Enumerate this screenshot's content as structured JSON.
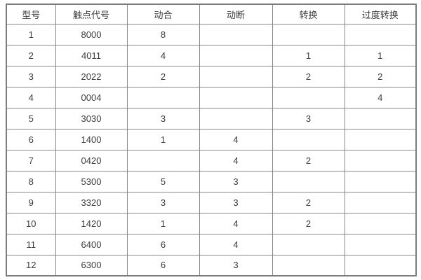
{
  "table": {
    "columns": [
      "型号",
      "触点代号",
      "动合",
      "动断",
      "转换",
      "过度转换"
    ],
    "rows": [
      [
        "1",
        "8000",
        "8",
        "",
        "",
        ""
      ],
      [
        "2",
        "4011",
        "4",
        "",
        "1",
        "1"
      ],
      [
        "3",
        "2022",
        "2",
        "",
        "2",
        "2"
      ],
      [
        "4",
        "0004",
        "",
        "",
        "",
        "4"
      ],
      [
        "5",
        "3030",
        "3",
        "",
        "3",
        ""
      ],
      [
        "6",
        "1400",
        "1",
        "4",
        "",
        ""
      ],
      [
        "7",
        "0420",
        "",
        "4",
        "2",
        ""
      ],
      [
        "8",
        "5300",
        "5",
        "3",
        "",
        ""
      ],
      [
        "9",
        "3320",
        "3",
        "3",
        "2",
        ""
      ],
      [
        "10",
        "1420",
        "1",
        "4",
        "2",
        ""
      ],
      [
        "11",
        "6400",
        "6",
        "4",
        "",
        ""
      ],
      [
        "12",
        "6300",
        "6",
        "3",
        "",
        ""
      ]
    ]
  },
  "colors": {
    "background": "#ffffff",
    "border_inner": "#8a8a8a",
    "border_outer": "#7d7d7d",
    "text": "#3b3b3b"
  }
}
